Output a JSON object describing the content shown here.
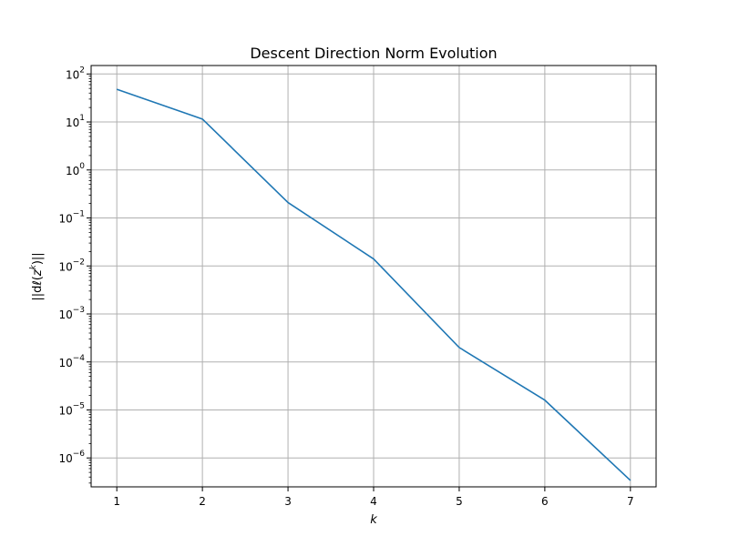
{
  "chart_data": {
    "type": "line",
    "title": "Descent Direction Norm Evolution",
    "xlabel": "k",
    "ylabel_parts": {
      "pre": "||d",
      "ell": "ℓ",
      "open": "(",
      "var": "z",
      "sup": "k",
      "close": ")||"
    },
    "xlim": [
      0.7,
      7.3
    ],
    "ylim": [
      2.5e-07,
      150
    ],
    "yscale": "log",
    "grid": true,
    "x_ticks": [
      1,
      2,
      3,
      4,
      5,
      6,
      7
    ],
    "y_ticks": [
      {
        "value": 100.0,
        "base": "10",
        "exp": "2"
      },
      {
        "value": 10.0,
        "base": "10",
        "exp": "1"
      },
      {
        "value": 1.0,
        "base": "10",
        "exp": "0"
      },
      {
        "value": 0.1,
        "base": "10",
        "exp": "−1"
      },
      {
        "value": 0.01,
        "base": "10",
        "exp": "−2"
      },
      {
        "value": 0.001,
        "base": "10",
        "exp": "−3"
      },
      {
        "value": 0.0001,
        "base": "10",
        "exp": "−4"
      },
      {
        "value": 1e-05,
        "base": "10",
        "exp": "−5"
      },
      {
        "value": 1e-06,
        "base": "10",
        "exp": "−6"
      }
    ],
    "series": [
      {
        "color": "#1f77b4",
        "x": [
          1,
          2,
          3,
          4,
          5,
          6,
          7
        ],
        "y": [
          48,
          11.5,
          0.21,
          0.014,
          0.0002,
          1.6e-05,
          3.4e-07
        ]
      }
    ]
  }
}
